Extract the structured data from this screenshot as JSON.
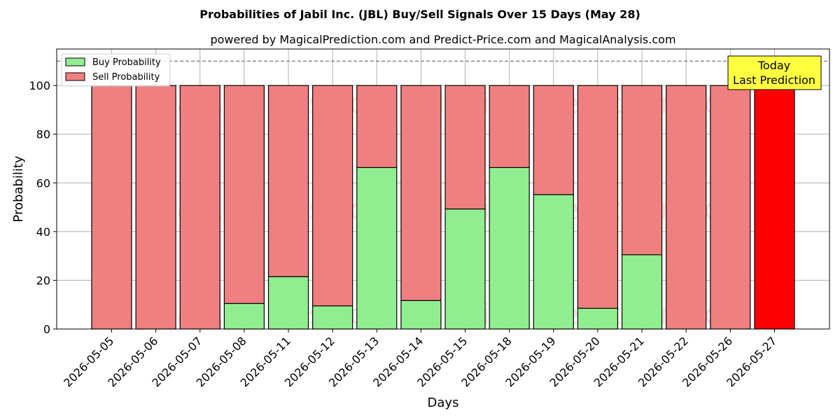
{
  "chart_data": {
    "type": "bar",
    "stacked": true,
    "title": "Probabilities of Jabil Inc. (JBL) Buy/Sell Signals Over 15 Days (May 28)",
    "subtitle": "powered by MagicalPrediction.com and Predict-Price.com and MagicalAnalysis.com",
    "xlabel": "Days",
    "ylabel": "Probability",
    "ylim": [
      0,
      115
    ],
    "yticks": [
      0,
      20,
      40,
      60,
      80,
      100
    ],
    "reference_line": 110,
    "grid": true,
    "legend_position": "top-left",
    "categories": [
      "2026-05-05",
      "2026-05-06",
      "2026-05-07",
      "2026-05-08",
      "2026-05-11",
      "2026-05-12",
      "2026-05-13",
      "2026-05-14",
      "2026-05-15",
      "2026-05-18",
      "2026-05-19",
      "2026-05-20",
      "2026-05-21",
      "2026-05-22",
      "2026-05-26",
      "2026-05-27"
    ],
    "series": [
      {
        "name": "Buy Probability",
        "color": "#90ee90",
        "values": [
          0,
          0,
          0,
          10.5,
          21.5,
          9.5,
          66.3,
          11.7,
          49.3,
          66.3,
          55.2,
          8.5,
          30.5,
          0,
          0,
          0
        ]
      },
      {
        "name": "Sell Probability",
        "color": "#f08080",
        "values": [
          100,
          100,
          100,
          89.5,
          78.5,
          90.5,
          33.7,
          88.3,
          50.7,
          33.7,
          44.8,
          91.5,
          69.5,
          100,
          100,
          100
        ]
      }
    ],
    "highlight": {
      "category": "2026-05-27",
      "color": "#ff0000"
    },
    "annotation": {
      "lines": [
        "Today",
        "Last Prediction"
      ],
      "background": "#ffff40"
    },
    "watermarks": [
      "MagicalAnalysis.com",
      "MagicalPrediction.com"
    ]
  }
}
